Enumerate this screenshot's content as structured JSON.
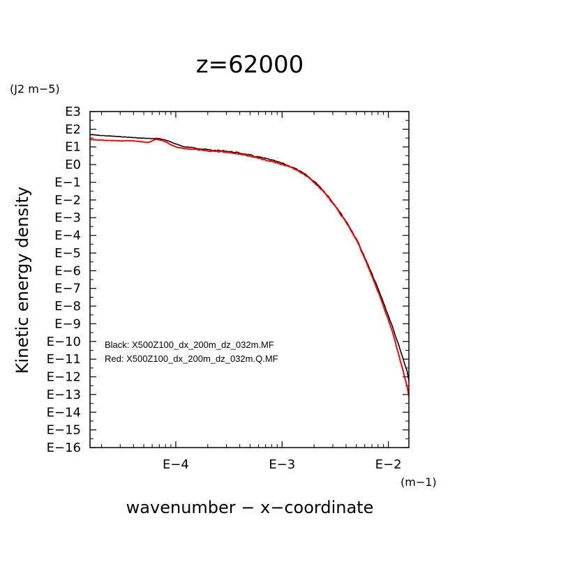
{
  "chart_data": {
    "type": "line",
    "title": "z=62000",
    "xlabel": "wavenumber − x−coordinate",
    "ylabel": "Kinetic energy density",
    "x_unit": "(m−1)",
    "y_unit": "(J2 m−5)",
    "x_scale": "log",
    "y_scale": "log",
    "xlim": [
      1.56e-05,
      0.0156
    ],
    "ylim": [
      1e-16,
      1000.0
    ],
    "x_ticks": [
      {
        "value": 0.0001,
        "label": "E−4"
      },
      {
        "value": 0.001,
        "label": "E−3"
      },
      {
        "value": 0.01,
        "label": "E−2"
      }
    ],
    "y_ticks": [
      {
        "value": 1000.0,
        "label": "E3"
      },
      {
        "value": 100.0,
        "label": "E2"
      },
      {
        "value": 10.0,
        "label": "E1"
      },
      {
        "value": 1.0,
        "label": "E0"
      },
      {
        "value": 0.1,
        "label": "E−1"
      },
      {
        "value": 0.01,
        "label": "E−2"
      },
      {
        "value": 0.001,
        "label": "E−3"
      },
      {
        "value": 0.0001,
        "label": "E−4"
      },
      {
        "value": 1e-05,
        "label": "E−5"
      },
      {
        "value": 1e-06,
        "label": "E−6"
      },
      {
        "value": 1e-07,
        "label": "E−7"
      },
      {
        "value": 1e-08,
        "label": "E−8"
      },
      {
        "value": 1e-09,
        "label": "E−9"
      },
      {
        "value": 1e-10,
        "label": "E−10"
      },
      {
        "value": 1e-11,
        "label": "E−11"
      },
      {
        "value": 1e-12,
        "label": "E−12"
      },
      {
        "value": 1e-13,
        "label": "E−13"
      },
      {
        "value": 1e-14,
        "label": "E−14"
      },
      {
        "value": 1e-15,
        "label": "E−15"
      },
      {
        "value": 1e-16,
        "label": "E−16"
      }
    ],
    "legend": {
      "placement": "lower-left",
      "lines": [
        "Black: X500Z100_dx_200m_dz_032m.MF",
        "Red: X500Z100_dx_200m_dz_032m.Q.MF"
      ]
    },
    "grid": false,
    "series": [
      {
        "color": "#000000",
        "x": [
          1.56e-05,
          2e-05,
          3e-05,
          4.5e-05,
          5.5e-05,
          6e-05,
          7e-05,
          8e-05,
          0.0001,
          0.00012,
          0.00015,
          0.00018,
          0.00022,
          0.0003,
          0.0004,
          0.00055,
          0.00075,
          0.001,
          0.0013,
          0.0017,
          0.0022,
          0.0027,
          0.0033,
          0.0042,
          0.0052,
          0.0062,
          0.0075,
          0.009,
          0.011,
          0.013,
          0.015,
          0.0156
        ],
        "y": [
          50,
          44,
          38,
          32,
          30,
          30,
          30,
          24,
          15,
          10,
          9,
          7.5,
          6.5,
          5.8,
          4.5,
          3.0,
          2.0,
          1.2,
          0.65,
          0.25,
          0.07,
          0.017,
          0.0035,
          0.0004,
          4e-05,
          3.5e-06,
          2.5e-07,
          1.6e-08,
          6e-10,
          3e-11,
          2e-12,
          6e-13
        ]
      },
      {
        "color": "#ff0000",
        "x": [
          1.56e-05,
          2e-05,
          3e-05,
          4e-05,
          5e-05,
          5.5e-05,
          6e-05,
          6.5e-05,
          7.5e-05,
          8.5e-05,
          0.0001,
          0.00012,
          0.00015,
          0.00018,
          0.00022,
          0.0003,
          0.0004,
          0.00055,
          0.00075,
          0.001,
          0.0013,
          0.0017,
          0.0022,
          0.0027,
          0.0033,
          0.0042,
          0.0052,
          0.0062,
          0.0075,
          0.009,
          0.011,
          0.013,
          0.015,
          0.0156
        ],
        "y": [
          26,
          24,
          22,
          22,
          19,
          18,
          22,
          27,
          23,
          16,
          10,
          8,
          7.2,
          6.5,
          5.8,
          5.0,
          4.0,
          2.6,
          1.7,
          1.0,
          0.58,
          0.22,
          0.06,
          0.015,
          0.003,
          0.00035,
          3.5e-05,
          3e-06,
          1.8e-07,
          1e-08,
          3e-10,
          8e-12,
          3e-13,
          8e-14
        ]
      }
    ]
  }
}
